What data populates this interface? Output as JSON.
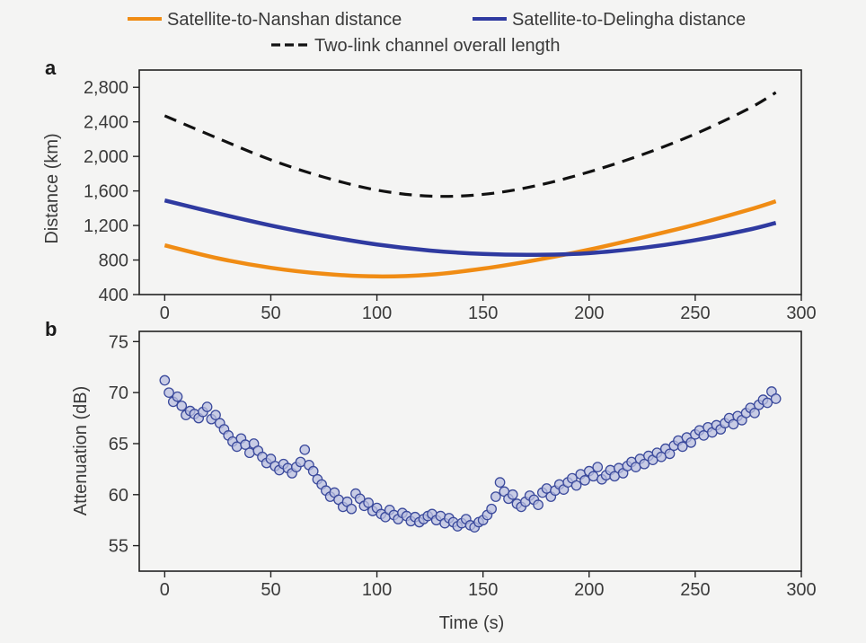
{
  "legend": [
    {
      "label": "Satellite-to-Nanshan distance",
      "color": "#f08c14",
      "style": "solid"
    },
    {
      "label": "Satellite-to-Delingha distance",
      "color": "#2f3aa0",
      "style": "solid"
    },
    {
      "label": "Two-link channel overall length",
      "color": "#111111",
      "style": "dashed"
    }
  ],
  "chart_data": [
    {
      "panel": "a",
      "type": "line",
      "ylabel": "Distance (km)",
      "xlabel": "",
      "xlim": [
        -12,
        300
      ],
      "ylim": [
        400,
        3000
      ],
      "xticks": [
        0,
        50,
        100,
        150,
        200,
        250,
        300
      ],
      "yticks": [
        400,
        800,
        1200,
        1600,
        2000,
        2400,
        2800
      ],
      "xtick_labels": [
        "0",
        "50",
        "100",
        "150",
        "200",
        "250",
        "300"
      ],
      "ytick_labels": [
        "400",
        "800",
        "1,200",
        "1,600",
        "2,000",
        "2,400",
        "2,800"
      ],
      "series": [
        {
          "name": "Satellite-to-Nanshan distance",
          "color": "#f08c14",
          "style": "solid",
          "x": [
            0,
            25,
            50,
            75,
            100,
            125,
            150,
            175,
            200,
            225,
            250,
            275,
            288
          ],
          "y": [
            970,
            820,
            710,
            640,
            610,
            630,
            700,
            800,
            920,
            1060,
            1210,
            1380,
            1480
          ]
        },
        {
          "name": "Satellite-to-Delingha distance",
          "color": "#2f3aa0",
          "style": "solid",
          "x": [
            0,
            25,
            50,
            75,
            100,
            125,
            150,
            175,
            200,
            225,
            250,
            275,
            288
          ],
          "y": [
            1490,
            1340,
            1200,
            1080,
            980,
            910,
            870,
            860,
            880,
            940,
            1030,
            1150,
            1230
          ]
        },
        {
          "name": "Two-link channel overall length",
          "color": "#111111",
          "style": "dashed",
          "x": [
            0,
            25,
            50,
            75,
            100,
            125,
            150,
            175,
            200,
            225,
            250,
            275,
            288
          ],
          "y": [
            2470,
            2210,
            1960,
            1760,
            1610,
            1540,
            1560,
            1660,
            1820,
            2020,
            2260,
            2550,
            2740
          ]
        }
      ]
    },
    {
      "panel": "b",
      "type": "scatter",
      "xlabel": "Time (s)",
      "ylabel": "Attenuation (dB)",
      "xlim": [
        -12,
        300
      ],
      "ylim": [
        52.5,
        76
      ],
      "xticks": [
        0,
        50,
        100,
        150,
        200,
        250,
        300
      ],
      "yticks": [
        55,
        60,
        65,
        70,
        75
      ],
      "xtick_labels": [
        "0",
        "50",
        "100",
        "150",
        "200",
        "250",
        "300"
      ],
      "ytick_labels": [
        "55",
        "60",
        "65",
        "70",
        "75"
      ],
      "point_color": "#3b4a9c",
      "point_fill": "#b9bfe0",
      "x": [
        0,
        2,
        4,
        6,
        8,
        10,
        12,
        14,
        16,
        18,
        20,
        22,
        24,
        26,
        28,
        30,
        32,
        34,
        36,
        38,
        40,
        42,
        44,
        46,
        48,
        50,
        52,
        54,
        56,
        58,
        60,
        62,
        64,
        66,
        68,
        70,
        72,
        74,
        76,
        78,
        80,
        82,
        84,
        86,
        88,
        90,
        92,
        94,
        96,
        98,
        100,
        102,
        104,
        106,
        108,
        110,
        112,
        114,
        116,
        118,
        120,
        122,
        124,
        126,
        128,
        130,
        132,
        134,
        136,
        138,
        140,
        142,
        144,
        146,
        148,
        150,
        152,
        154,
        156,
        158,
        160,
        162,
        164,
        166,
        168,
        170,
        172,
        174,
        176,
        178,
        180,
        182,
        184,
        186,
        188,
        190,
        192,
        194,
        196,
        198,
        200,
        202,
        204,
        206,
        208,
        210,
        212,
        214,
        216,
        218,
        220,
        222,
        224,
        226,
        228,
        230,
        232,
        234,
        236,
        238,
        240,
        242,
        244,
        246,
        248,
        250,
        252,
        254,
        256,
        258,
        260,
        262,
        264,
        266,
        268,
        270,
        272,
        274,
        276,
        278,
        280,
        282,
        284,
        286,
        288
      ],
      "y": [
        71.2,
        70.0,
        69.1,
        69.6,
        68.7,
        67.8,
        68.2,
        67.9,
        67.5,
        68.1,
        68.6,
        67.4,
        67.8,
        67.0,
        66.4,
        65.8,
        65.2,
        64.7,
        65.5,
        64.9,
        64.1,
        65.0,
        64.3,
        63.7,
        63.1,
        63.5,
        62.8,
        62.4,
        63.0,
        62.6,
        62.1,
        62.7,
        63.2,
        64.4,
        62.9,
        62.3,
        61.5,
        61.0,
        60.4,
        59.8,
        60.2,
        59.5,
        58.8,
        59.3,
        58.6,
        60.1,
        59.6,
        58.9,
        59.2,
        58.4,
        58.7,
        58.1,
        57.8,
        58.5,
        58.0,
        57.6,
        58.2,
        57.9,
        57.4,
        57.8,
        57.3,
        57.6,
        57.9,
        58.1,
        57.5,
        57.9,
        57.2,
        57.7,
        57.3,
        56.9,
        57.2,
        57.6,
        57.0,
        56.8,
        57.3,
        57.5,
        58.0,
        58.6,
        59.8,
        61.2,
        60.3,
        59.6,
        60.0,
        59.1,
        58.8,
        59.3,
        59.9,
        59.5,
        59.0,
        60.2,
        60.6,
        59.8,
        60.4,
        61.0,
        60.5,
        61.2,
        61.6,
        60.9,
        62.0,
        61.4,
        62.3,
        61.8,
        62.7,
        61.5,
        61.9,
        62.4,
        61.8,
        62.6,
        62.1,
        62.8,
        63.2,
        62.7,
        63.5,
        63.0,
        63.8,
        63.4,
        64.1,
        63.7,
        64.5,
        64.0,
        64.8,
        65.3,
        64.7,
        65.6,
        65.1,
        65.9,
        66.3,
        65.8,
        66.6,
        66.1,
        66.8,
        66.4,
        67.0,
        67.5,
        66.9,
        67.7,
        67.3,
        68.0,
        68.5,
        68.0,
        68.8,
        69.3,
        69.0,
        70.1,
        69.4
      ]
    }
  ],
  "panel_labels": [
    "a",
    "b"
  ]
}
